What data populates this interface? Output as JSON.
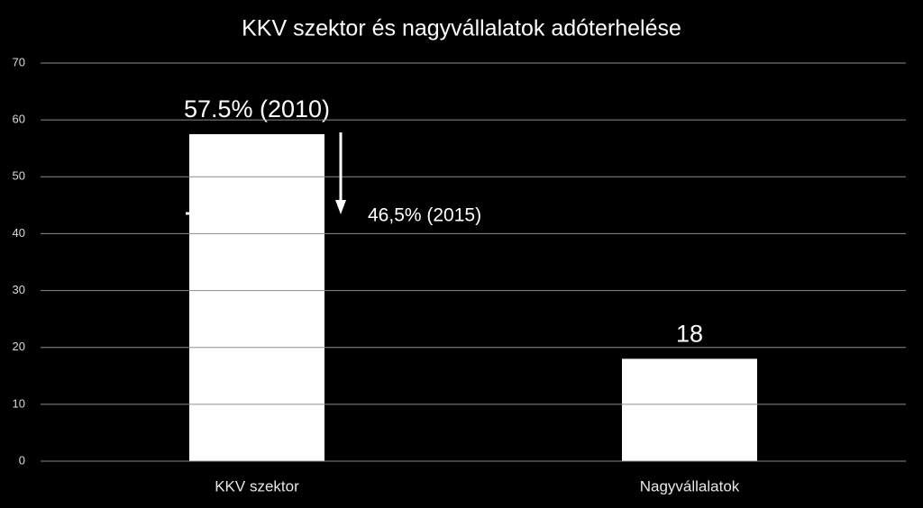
{
  "chart_data": {
    "type": "bar",
    "title": "KKV szektor és nagyvállalatok adóterhelése",
    "categories": [
      "KKV szektor",
      "Nagyvállalatok"
    ],
    "values": [
      57.5,
      18
    ],
    "value_labels": [
      "57.5% (2010)",
      "18"
    ],
    "color": "#ffffff",
    "ylim": [
      0,
      70
    ],
    "yticks": [
      0,
      10,
      20,
      30,
      40,
      50,
      60,
      70
    ],
    "grid": true,
    "annotation": "46,5% (2015)"
  }
}
